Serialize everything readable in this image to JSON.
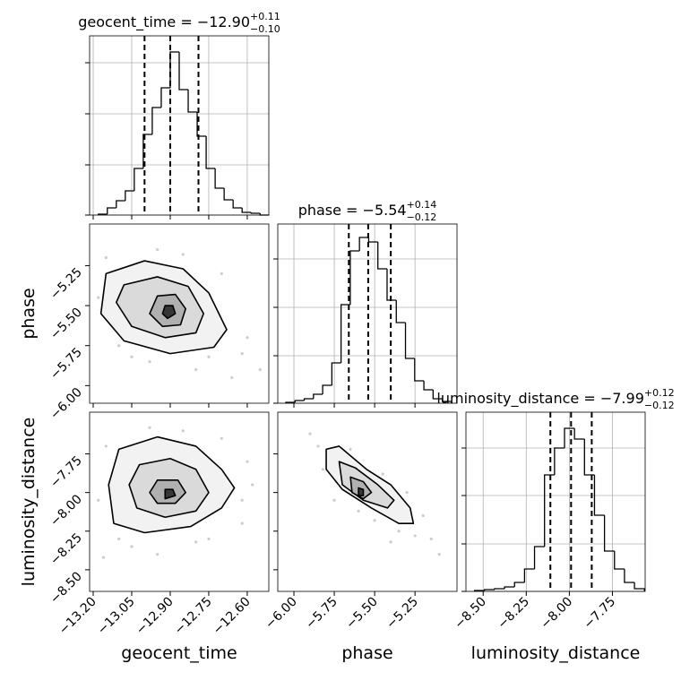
{
  "chart_data": [
    {
      "type": "histogram",
      "title": "geocent_time = −12.90",
      "title_upper": "+0.11",
      "title_lower": "−0.10",
      "bins": [
        -13.18,
        -13.145,
        -13.11,
        -13.075,
        -13.04,
        -13.005,
        -12.97,
        -12.935,
        -12.9,
        -12.865,
        -12.83,
        -12.795,
        -12.76,
        -12.725,
        -12.69,
        -12.655,
        -12.62,
        -12.585,
        -12.55,
        -12.515
      ],
      "counts": [
        1,
        8,
        16,
        27,
        52,
        90,
        120,
        142,
        182,
        140,
        115,
        88,
        52,
        30,
        17,
        8,
        3,
        2,
        0
      ],
      "quantiles": [
        -13.0,
        -12.9,
        -12.79
      ],
      "xlim": [
        -13.214,
        -12.516
      ],
      "ylim": [
        0,
        200
      ],
      "xticks": [
        -13.2,
        -13.05,
        -12.9,
        -12.75,
        -12.6
      ],
      "yticks": [
        0,
        56,
        113,
        170
      ],
      "grid": true
    },
    {
      "type": "contour",
      "xlim": [
        -13.214,
        -12.516
      ],
      "ylim": [
        -6.11,
        -4.99
      ],
      "xticks": [
        -13.2,
        -13.05,
        -12.9,
        -12.75,
        -12.6
      ],
      "yticks": [
        {
          "value": -5.25,
          "label": "−5.25"
        },
        {
          "value": -5.5,
          "label": "−5.50"
        },
        {
          "value": -5.75,
          "label": "−5.75"
        },
        {
          "value": -6.0,
          "label": "−6.00"
        }
      ],
      "y_label": "phase",
      "grid": false,
      "points": {
        "x": [
          -13.15,
          -13.1,
          -12.7,
          -12.62,
          -12.98,
          -12.8,
          -13.18,
          -12.6,
          -12.85,
          -13.05,
          -12.75,
          -12.66,
          -13.12,
          -12.95,
          -12.55
        ],
        "y": [
          -5.2,
          -5.75,
          -5.3,
          -5.8,
          -5.85,
          -5.9,
          -5.45,
          -5.7,
          -5.18,
          -5.82,
          -5.82,
          -5.95,
          -5.62,
          -5.15,
          -5.9
        ]
      },
      "contours": [
        {
          "x": [
            -13.15,
            -13.0,
            -12.85,
            -12.75,
            -12.68,
            -12.73,
            -12.9,
            -13.08,
            -13.17
          ],
          "y": [
            -5.3,
            -5.22,
            -5.27,
            -5.42,
            -5.65,
            -5.76,
            -5.8,
            -5.72,
            -5.55
          ]
        },
        {
          "x": [
            -13.08,
            -12.95,
            -12.83,
            -12.77,
            -12.8,
            -12.92,
            -13.05,
            -13.11
          ],
          "y": [
            -5.37,
            -5.32,
            -5.38,
            -5.55,
            -5.67,
            -5.7,
            -5.63,
            -5.48
          ]
        },
        {
          "x": [
            -12.95,
            -12.88,
            -12.84,
            -12.86,
            -12.93,
            -12.98
          ],
          "y": [
            -5.44,
            -5.43,
            -5.52,
            -5.62,
            -5.63,
            -5.55
          ]
        },
        {
          "x": [
            -12.92,
            -12.89,
            -12.88,
            -12.91,
            -12.93
          ],
          "y": [
            -5.5,
            -5.5,
            -5.55,
            -5.58,
            -5.55
          ]
        }
      ]
    },
    {
      "type": "histogram",
      "title": "phase = −5.54",
      "title_upper": "+0.14",
      "title_lower": "−0.12",
      "bins": [
        -6.05,
        -5.993,
        -5.936,
        -5.879,
        -5.822,
        -5.765,
        -5.708,
        -5.651,
        -5.594,
        -5.537,
        -5.48,
        -5.423,
        -5.366,
        -5.309,
        -5.252,
        -5.195,
        -5.138,
        -5.081,
        -5.024
      ],
      "counts": [
        1,
        3,
        5,
        10,
        20,
        45,
        110,
        170,
        185,
        180,
        150,
        115,
        90,
        50,
        25,
        15,
        5,
        2
      ],
      "quantiles": [
        -5.66,
        -5.54,
        -5.4
      ],
      "xlim": [
        -6.1,
        -4.99
      ],
      "ylim": [
        0,
        200
      ],
      "xticks": [
        -6.0,
        -5.75,
        -5.5,
        -5.25
      ],
      "yticks": [
        0,
        53,
        107,
        161
      ],
      "grid": true
    },
    {
      "type": "contour",
      "xlim": [
        -13.214,
        -12.516
      ],
      "ylim": [
        -8.64,
        -7.48
      ],
      "xticks": [
        {
          "value": -13.2,
          "label": "−13.20"
        },
        {
          "value": -13.05,
          "label": "−13.05"
        },
        {
          "value": -12.9,
          "label": "−12.90"
        },
        {
          "value": -12.75,
          "label": "−12.75"
        },
        {
          "value": -12.6,
          "label": "−12.60"
        }
      ],
      "yticks": [
        {
          "value": -7.75,
          "label": "−7.75"
        },
        {
          "value": -8.0,
          "label": "−8.00"
        },
        {
          "value": -8.25,
          "label": "−8.25"
        },
        {
          "value": -8.5,
          "label": "−8.50"
        }
      ],
      "x_label": "geocent_time",
      "y_label": "luminosity_distance",
      "grid": false,
      "points": {
        "x": [
          -13.15,
          -13.1,
          -12.7,
          -12.62,
          -12.98,
          -12.8,
          -13.18,
          -12.6,
          -12.85,
          -13.05,
          -12.75,
          -12.62,
          -13.16,
          -12.95,
          -12.58
        ],
        "y": [
          -7.7,
          -8.3,
          -7.65,
          -8.2,
          -7.58,
          -8.32,
          -8.05,
          -7.8,
          -7.6,
          -8.35,
          -8.3,
          -8.05,
          -8.42,
          -8.4,
          -7.95
        ]
      },
      "contours": [
        {
          "x": [
            -13.1,
            -12.95,
            -12.8,
            -12.7,
            -12.65,
            -12.7,
            -12.82,
            -13.0,
            -13.12,
            -13.14
          ],
          "y": [
            -7.72,
            -7.64,
            -7.7,
            -7.85,
            -7.97,
            -8.1,
            -8.22,
            -8.26,
            -8.2,
            -7.95
          ]
        },
        {
          "x": [
            -13.02,
            -12.9,
            -12.8,
            -12.75,
            -12.8,
            -12.92,
            -13.03,
            -13.06
          ],
          "y": [
            -7.82,
            -7.78,
            -7.85,
            -8.0,
            -8.12,
            -8.16,
            -8.1,
            -7.95
          ]
        },
        {
          "x": [
            -12.95,
            -12.87,
            -12.84,
            -12.88,
            -12.95,
            -12.98
          ],
          "y": [
            -7.92,
            -7.92,
            -8.0,
            -8.07,
            -8.07,
            -8.0
          ]
        },
        {
          "x": [
            -12.92,
            -12.89,
            -12.88,
            -12.92
          ],
          "y": [
            -7.98,
            -7.98,
            -8.02,
            -8.04
          ]
        }
      ]
    },
    {
      "type": "contour",
      "xlim": [
        -6.1,
        -4.99
      ],
      "ylim": [
        -8.64,
        -7.48
      ],
      "xticks": [
        {
          "value": -6.0,
          "label": "−6.00"
        },
        {
          "value": -5.75,
          "label": "−5.75"
        },
        {
          "value": -5.5,
          "label": "−5.50"
        },
        {
          "value": -5.25,
          "label": "−5.25"
        }
      ],
      "yticks": [
        -7.75,
        -8.0,
        -8.25,
        -8.5
      ],
      "x_label": "phase",
      "grid": false,
      "points": {
        "x": [
          -5.9,
          -5.85,
          -5.82,
          -5.65,
          -5.45,
          -5.35,
          -5.25,
          -5.2,
          -5.15,
          -5.6,
          -5.5,
          -5.3,
          -5.75,
          -5.4,
          -5.1
        ],
        "y": [
          -7.62,
          -7.7,
          -7.85,
          -7.72,
          -7.88,
          -8.25,
          -8.28,
          -8.15,
          -8.3,
          -8.12,
          -8.18,
          -8.0,
          -8.05,
          -8.32,
          -8.4
        ]
      },
      "contours": [
        {
          "x": [
            -5.8,
            -5.72,
            -5.55,
            -5.4,
            -5.28,
            -5.26,
            -5.35,
            -5.52,
            -5.7,
            -5.8
          ],
          "y": [
            -7.72,
            -7.7,
            -7.85,
            -7.95,
            -8.1,
            -8.2,
            -8.2,
            -8.1,
            -7.98,
            -7.85
          ]
        },
        {
          "x": [
            -5.72,
            -5.62,
            -5.48,
            -5.38,
            -5.42,
            -5.57,
            -5.7
          ],
          "y": [
            -7.8,
            -7.84,
            -7.95,
            -8.05,
            -8.1,
            -8.05,
            -7.95
          ]
        },
        {
          "x": [
            -5.65,
            -5.57,
            -5.52,
            -5.57,
            -5.64
          ],
          "y": [
            -7.9,
            -7.93,
            -8.0,
            -8.04,
            -8.0
          ]
        },
        {
          "x": [
            -5.6,
            -5.57,
            -5.57,
            -5.6
          ],
          "y": [
            -7.97,
            -7.98,
            -8.02,
            -8.02
          ]
        }
      ]
    },
    {
      "type": "histogram",
      "title": "luminosity_distance = −7.99",
      "title_upper": "+0.12",
      "title_lower": "−0.12",
      "bins": [
        -8.55,
        -8.492,
        -8.434,
        -8.376,
        -8.318,
        -8.26,
        -8.202,
        -8.144,
        -8.086,
        -8.028,
        -7.97,
        -7.912,
        -7.854,
        -7.796,
        -7.738,
        -7.68,
        -7.622,
        -7.564
      ],
      "counts": [
        1,
        2,
        3,
        5,
        10,
        25,
        50,
        130,
        160,
        182,
        170,
        130,
        85,
        45,
        25,
        10,
        3
      ],
      "quantiles": [
        -8.11,
        -7.99,
        -7.87
      ],
      "xlim": [
        -8.6,
        -7.56
      ],
      "ylim": [
        0,
        200
      ],
      "xticks": [
        {
          "value": -8.5,
          "label": "−8.50"
        },
        {
          "value": -8.25,
          "label": "−8.25"
        },
        {
          "value": -8.0,
          "label": "−8.00"
        },
        {
          "value": -7.75,
          "label": "−7.75"
        }
      ],
      "yticks": [
        0,
        53,
        107,
        160
      ],
      "x_label": "luminosity_distance",
      "grid": true
    }
  ]
}
